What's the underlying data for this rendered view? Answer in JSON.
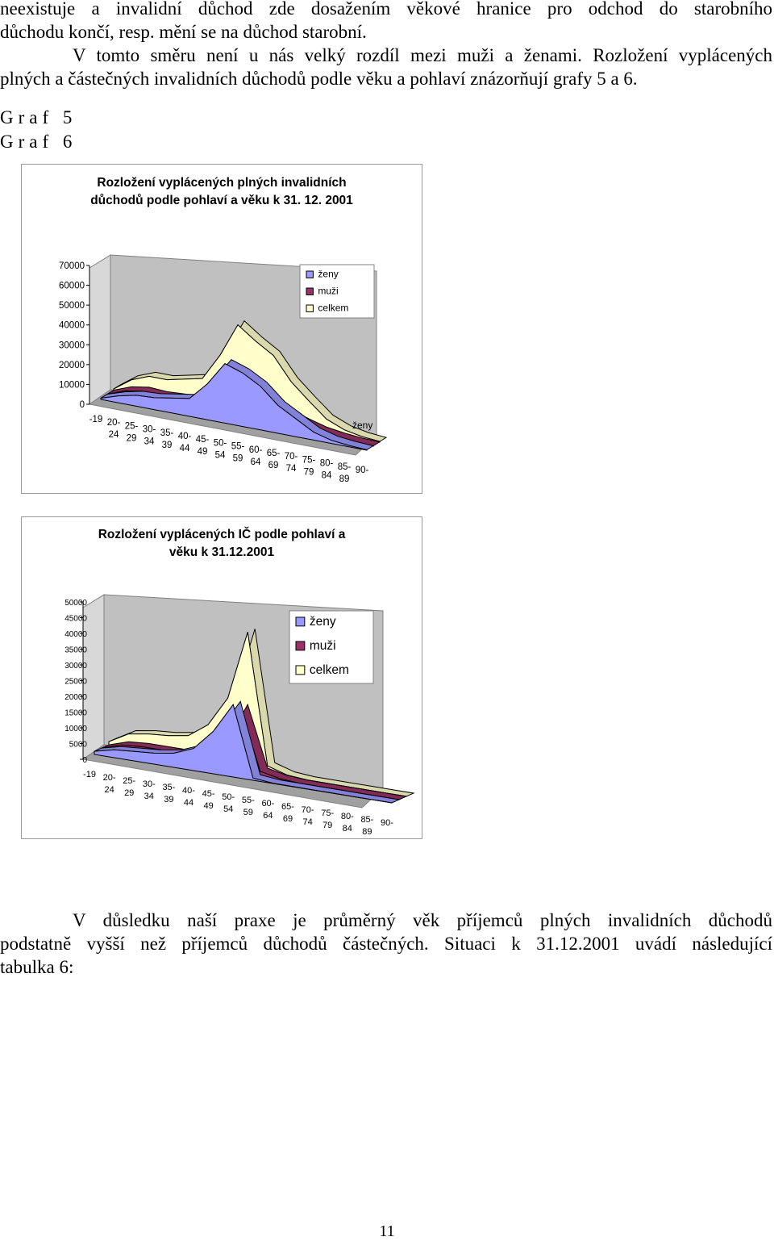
{
  "text": {
    "intro_lines": [
      "neexistuje a invalidní důchod zde dosažením věkové hranice pro odchod do starobního",
      "důchodu končí, resp. mění se na důchod starobní.",
      "V tomto směru není u nás velký rozdíl mezi muži a ženami. Rozložení vyplácených",
      "plných a částečných invalidních důchodů podle věku a pohlaví znázorňují grafy 5 a 6."
    ],
    "graf5_label": "Graf 5",
    "graf6_label": "Graf 6",
    "outro_lines": [
      "V důsledku naší praxe je průměrný věk příjemců plných invalidních důchodů",
      "podstatně vyšší než příjemců důchodů částečných. Situaci k 31.12.2001 uvádí následující",
      "tabulka 6:"
    ],
    "page_number": "11"
  },
  "colors": {
    "zeny": "#9999ff",
    "muzi": "#993366",
    "celkem": "#ffffcc",
    "wall": "#c0c0c0",
    "floor": "#a0a0a0"
  },
  "chart_data": [
    {
      "type": "area",
      "title_lines": [
        "Rozložení vyplácených plných invalidních",
        "důchodů podle pohlaví a věku k 31. 12. 2001"
      ],
      "categories": [
        [
          "-19"
        ],
        [
          "20-",
          "24"
        ],
        [
          "25-",
          "29"
        ],
        [
          "30-",
          "34"
        ],
        [
          "35-",
          "39"
        ],
        [
          "40-",
          "44"
        ],
        [
          "45-",
          "49"
        ],
        [
          "50-",
          "54"
        ],
        [
          "55-",
          "59"
        ],
        [
          "60-",
          "64"
        ],
        [
          "65-",
          "69"
        ],
        [
          "70-",
          "74"
        ],
        [
          "75-",
          "79"
        ],
        [
          "80-",
          "84"
        ],
        [
          "85-",
          "89"
        ],
        [
          "90-"
        ]
      ],
      "ylim": [
        0,
        70000
      ],
      "yticks": [
        "0",
        "10000",
        "20000",
        "30000",
        "40000",
        "50000",
        "60000",
        "70000"
      ],
      "depth_axis_label": "ženy",
      "legend": [
        "ženy",
        "muži",
        "celkem"
      ],
      "series": [
        {
          "name": "ženy",
          "values": [
            600,
            3500,
            5500,
            6000,
            7500,
            9000,
            18000,
            30000,
            27000,
            22000,
            14000,
            9000,
            4000,
            1600,
            700,
            200
          ]
        },
        {
          "name": "muži",
          "values": [
            600,
            4000,
            5500,
            5000,
            5500,
            6000,
            10500,
            15500,
            12000,
            11500,
            8000,
            5000,
            2500,
            1200,
            400,
            150
          ]
        },
        {
          "name": "celkem",
          "values": [
            1200,
            7500,
            11000,
            11000,
            13000,
            15000,
            28500,
            45500,
            39000,
            33500,
            22000,
            14000,
            6500,
            2800,
            1100,
            350
          ]
        }
      ]
    },
    {
      "type": "area",
      "title_lines": [
        "Rozložení vyplácených IČ podle pohlaví a",
        "věku k 31.12.2001"
      ],
      "categories": [
        [
          "-19"
        ],
        [
          "20-",
          "24"
        ],
        [
          "25-",
          "29"
        ],
        [
          "30-",
          "34"
        ],
        [
          "35-",
          "39"
        ],
        [
          "40-",
          "44"
        ],
        [
          "45-",
          "49"
        ],
        [
          "50-",
          "54"
        ],
        [
          "55-",
          "59"
        ],
        [
          "60-",
          "64"
        ],
        [
          "65-",
          "69"
        ],
        [
          "70-",
          "74"
        ],
        [
          "75-",
          "79"
        ],
        [
          "80-",
          "84"
        ],
        [
          "85-",
          "89"
        ],
        [
          "90-"
        ]
      ],
      "ylim": [
        0,
        50000
      ],
      "yticks": [
        "0",
        "5000",
        "10000",
        "15000",
        "20000",
        "25000",
        "30000",
        "35000",
        "40000",
        "45000",
        "50000"
      ],
      "legend": [
        "ženy",
        "muži",
        "celkem"
      ],
      "series": [
        {
          "name": "ženy",
          "values": [
            1000,
            2500,
            3000,
            3500,
            4500,
            7000,
            13500,
            23000,
            700,
            100,
            50,
            30,
            20,
            10,
            5,
            5
          ]
        },
        {
          "name": "muži",
          "values": [
            1000,
            3000,
            3500,
            3500,
            3500,
            5500,
            8500,
            21000,
            1800,
            500,
            50,
            30,
            20,
            10,
            5,
            5
          ]
        },
        {
          "name": "celkem",
          "values": [
            2000,
            5500,
            6500,
            7000,
            8000,
            12500,
            22000,
            44000,
            2500,
            600,
            100,
            60,
            40,
            20,
            10,
            10
          ]
        }
      ]
    }
  ]
}
